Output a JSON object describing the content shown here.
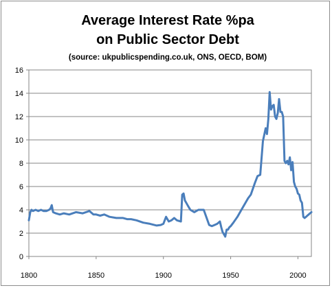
{
  "chart_data": {
    "type": "line",
    "title_line1": "Average Interest Rate %pa",
    "title_line2": "on Public Sector Debt",
    "subtitle": "(source: ukpublicspending.co.uk, ONS, OECD, BOM)",
    "xlabel": "",
    "ylabel": "",
    "xlim": [
      1800,
      2010
    ],
    "ylim": [
      0,
      16
    ],
    "x_ticks": [
      1800,
      1850,
      1900,
      1950,
      2000
    ],
    "y_ticks": [
      0,
      2,
      4,
      6,
      8,
      10,
      12,
      14,
      16
    ],
    "grid": "horizontal",
    "legend": "none",
    "colors": {
      "line": "#4a7ebb",
      "grid": "#868686",
      "plot_border": "#868686"
    },
    "series": [
      {
        "x": [
          1800,
          1801,
          1802,
          1803,
          1805,
          1807,
          1809,
          1811,
          1813,
          1815,
          1816,
          1817,
          1818,
          1820,
          1823,
          1826,
          1830,
          1835,
          1840,
          1845,
          1848,
          1850,
          1853,
          1856,
          1860,
          1865,
          1870,
          1873,
          1876,
          1880,
          1885,
          1890,
          1895,
          1898,
          1900,
          1902,
          1904,
          1906,
          1908,
          1910,
          1913,
          1914,
          1915,
          1916,
          1917,
          1918,
          1920,
          1923,
          1926,
          1930,
          1934,
          1936,
          1938,
          1940,
          1942,
          1943,
          1944,
          1945,
          1946,
          1947,
          1948,
          1949,
          1950,
          1952,
          1955,
          1958,
          1960,
          1963,
          1965,
          1968,
          1970,
          1972,
          1974,
          1976,
          1977,
          1978,
          1979,
          1980,
          1981,
          1982,
          1983,
          1984,
          1985,
          1986,
          1987,
          1988,
          1989,
          1990,
          1991,
          1992,
          1993,
          1994,
          1995,
          1996,
          1997,
          1998,
          1999,
          2000,
          2001,
          2002,
          2003,
          2004,
          2005,
          2006,
          2007,
          2008,
          2009,
          2010
        ],
        "y": [
          3.1,
          3.8,
          4.0,
          3.9,
          4.0,
          3.9,
          4.0,
          3.9,
          3.9,
          4.0,
          4.1,
          4.4,
          3.8,
          3.7,
          3.6,
          3.7,
          3.6,
          3.8,
          3.7,
          3.9,
          3.6,
          3.6,
          3.5,
          3.6,
          3.4,
          3.3,
          3.3,
          3.2,
          3.2,
          3.1,
          2.9,
          2.8,
          2.65,
          2.7,
          2.8,
          3.4,
          3.0,
          3.1,
          3.3,
          3.1,
          3.0,
          5.3,
          5.4,
          4.8,
          4.6,
          4.4,
          4.0,
          3.8,
          4.0,
          4.0,
          2.7,
          2.6,
          2.7,
          2.8,
          3.0,
          2.5,
          2.1,
          1.9,
          1.7,
          2.3,
          2.3,
          2.5,
          2.6,
          2.9,
          3.4,
          4.0,
          4.4,
          5.0,
          5.3,
          6.3,
          6.9,
          7.0,
          9.9,
          11.0,
          10.5,
          11.8,
          14.1,
          12.6,
          12.9,
          13.0,
          12.0,
          11.8,
          12.3,
          13.5,
          12.4,
          12.4,
          12.0,
          8.2,
          8.0,
          8.2,
          7.9,
          8.5,
          7.4,
          8.1,
          6.4,
          6.0,
          5.8,
          5.4,
          5.3,
          4.8,
          4.6,
          3.4,
          3.3,
          3.4,
          3.5,
          3.6,
          3.7,
          3.8
        ]
      }
    ]
  }
}
